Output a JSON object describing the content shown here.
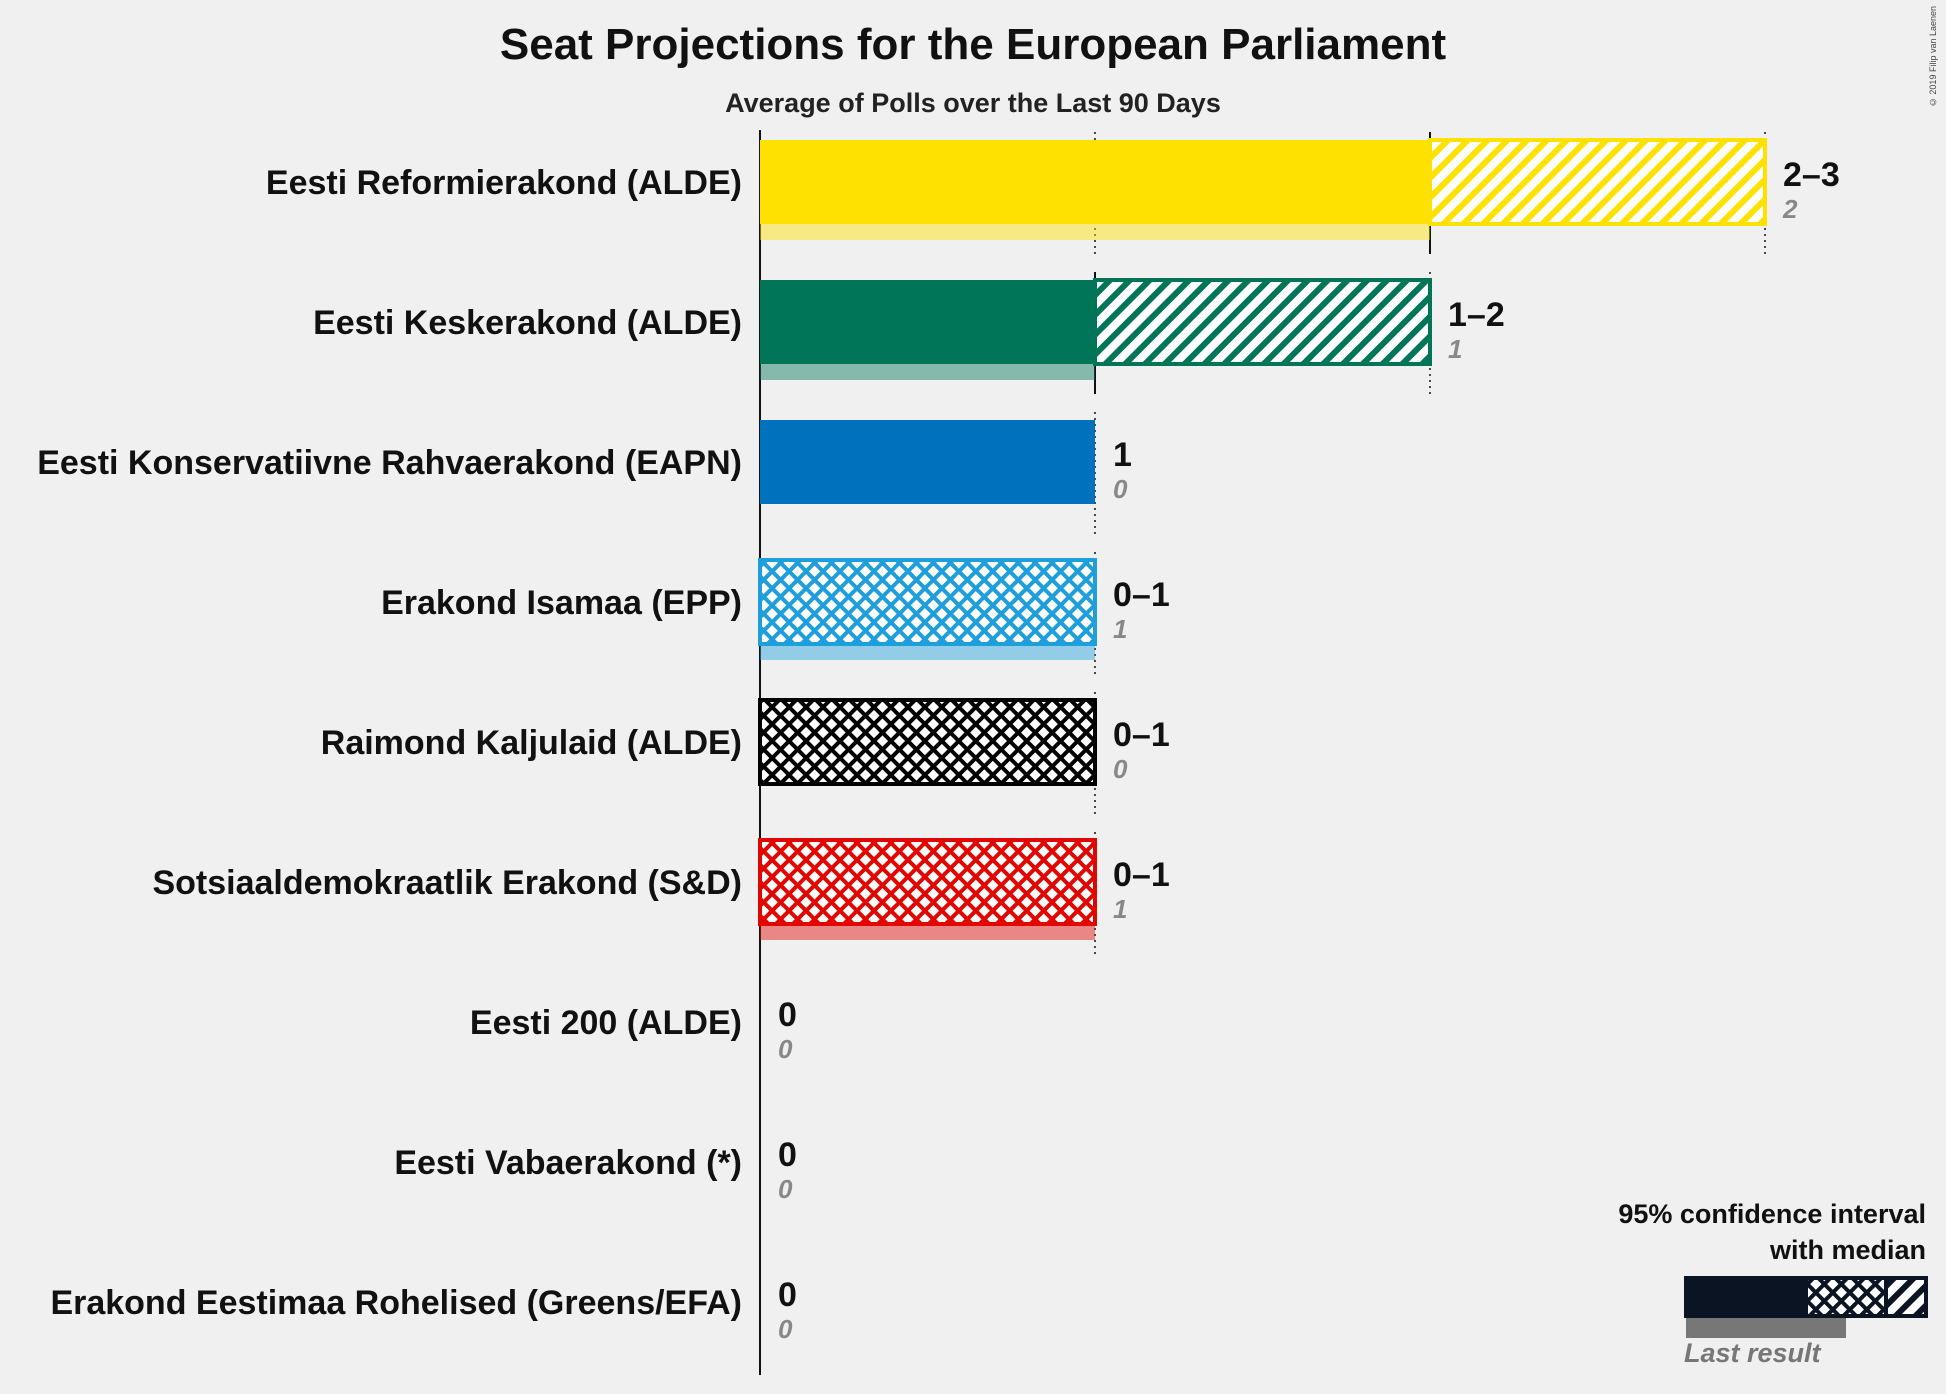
{
  "title": "Seat Projections for the European Parliament",
  "subtitle": "Average of Polls over the Last 90 Days",
  "copyright": "© 2019 Filip van Laenen",
  "legend": {
    "line1": "95% confidence interval",
    "line2": "with median",
    "last_result": "Last result"
  },
  "chart_data": {
    "type": "bar",
    "orientation": "horizontal",
    "title": "Seat Projections for the European Parliament",
    "subtitle": "Average of Polls over the Last 90 Days",
    "xlim": [
      0,
      3
    ],
    "gridlines_at": [
      1,
      2,
      3
    ],
    "parties": [
      {
        "name": "Eesti Reformierakond (ALDE)",
        "low": 2,
        "high": 3,
        "median": 2,
        "last_result": 2,
        "range_label": "2–3",
        "last_label": "2",
        "color": "#FFE100"
      },
      {
        "name": "Eesti Keskerakond (ALDE)",
        "low": 1,
        "high": 2,
        "median": 1,
        "last_result": 1,
        "range_label": "1–2",
        "last_label": "1",
        "color": "#007557"
      },
      {
        "name": "Eesti Konservatiivne Rahvaerakond (EAPN)",
        "low": 1,
        "high": 1,
        "median": 1,
        "last_result": 0,
        "range_label": "1",
        "last_label": "0",
        "color": "#0071BC"
      },
      {
        "name": "Erakond Isamaa (EPP)",
        "low": 0,
        "high": 1,
        "median": 1,
        "last_result": 1,
        "range_label": "0–1",
        "last_label": "1",
        "color": "#1E9FDB"
      },
      {
        "name": "Raimond Kaljulaid (ALDE)",
        "low": 0,
        "high": 1,
        "median": 0,
        "last_result": 0,
        "range_label": "0–1",
        "last_label": "0",
        "color": "#000000"
      },
      {
        "name": "Sotsiaaldemokraatlik Erakond (S&D)",
        "low": 0,
        "high": 1,
        "median": 0,
        "last_result": 1,
        "range_label": "0–1",
        "last_label": "1",
        "color": "#E10600"
      },
      {
        "name": "Eesti 200 (ALDE)",
        "low": 0,
        "high": 0,
        "median": 0,
        "last_result": 0,
        "range_label": "0",
        "last_label": "0",
        "color": "#31ADA3"
      },
      {
        "name": "Eesti Vabaerakond (*)",
        "low": 0,
        "high": 0,
        "median": 0,
        "last_result": 0,
        "range_label": "0",
        "last_label": "0",
        "color": "#666666"
      },
      {
        "name": "Erakond Eestimaa Rohelised (Greens/EFA)",
        "low": 0,
        "high": 0,
        "median": 0,
        "last_result": 0,
        "range_label": "0",
        "last_label": "0",
        "color": "#56A01E"
      }
    ]
  }
}
